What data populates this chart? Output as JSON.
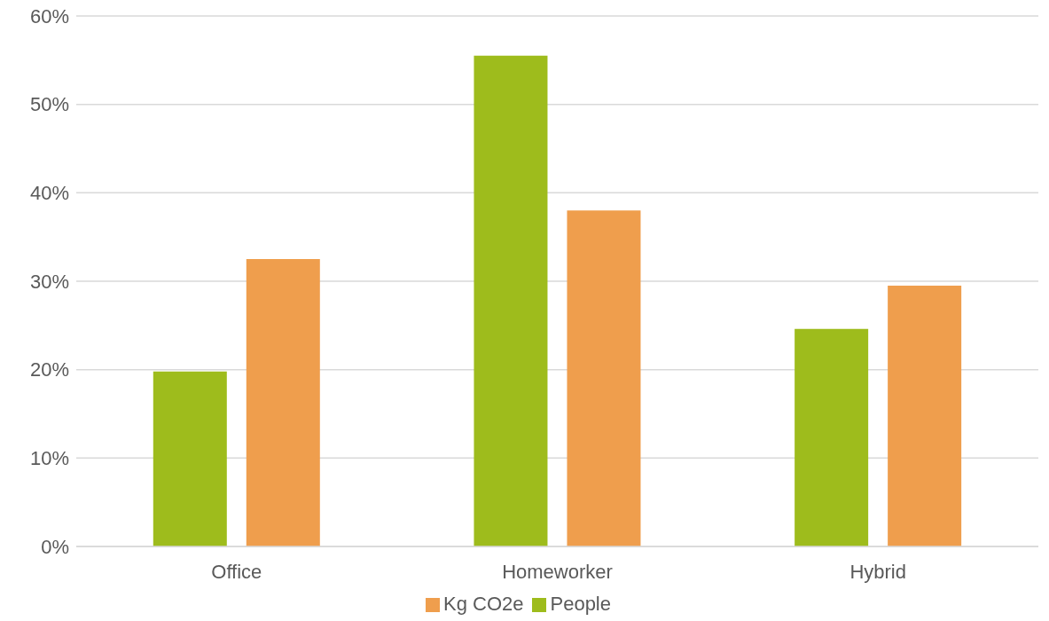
{
  "chart_data": {
    "type": "bar",
    "categories": [
      "Office",
      "Homeworker",
      "Hybrid"
    ],
    "series": [
      {
        "name": "People",
        "color": "#9ebc1c",
        "values": [
          19.8,
          55.5,
          24.6
        ]
      },
      {
        "name": "Kg CO2e",
        "color": "#ef9e4d",
        "values": [
          32.5,
          38.0,
          29.5
        ]
      }
    ],
    "ylim": [
      0,
      60
    ],
    "yticks": [
      {
        "value": 0,
        "label": "0%"
      },
      {
        "value": 10,
        "label": "10%"
      },
      {
        "value": 20,
        "label": "20%"
      },
      {
        "value": 30,
        "label": "30%"
      },
      {
        "value": 40,
        "label": "40%"
      },
      {
        "value": 50,
        "label": "50%"
      },
      {
        "value": 60,
        "label": "60%"
      }
    ],
    "grid": "y",
    "legend": "bottom"
  }
}
